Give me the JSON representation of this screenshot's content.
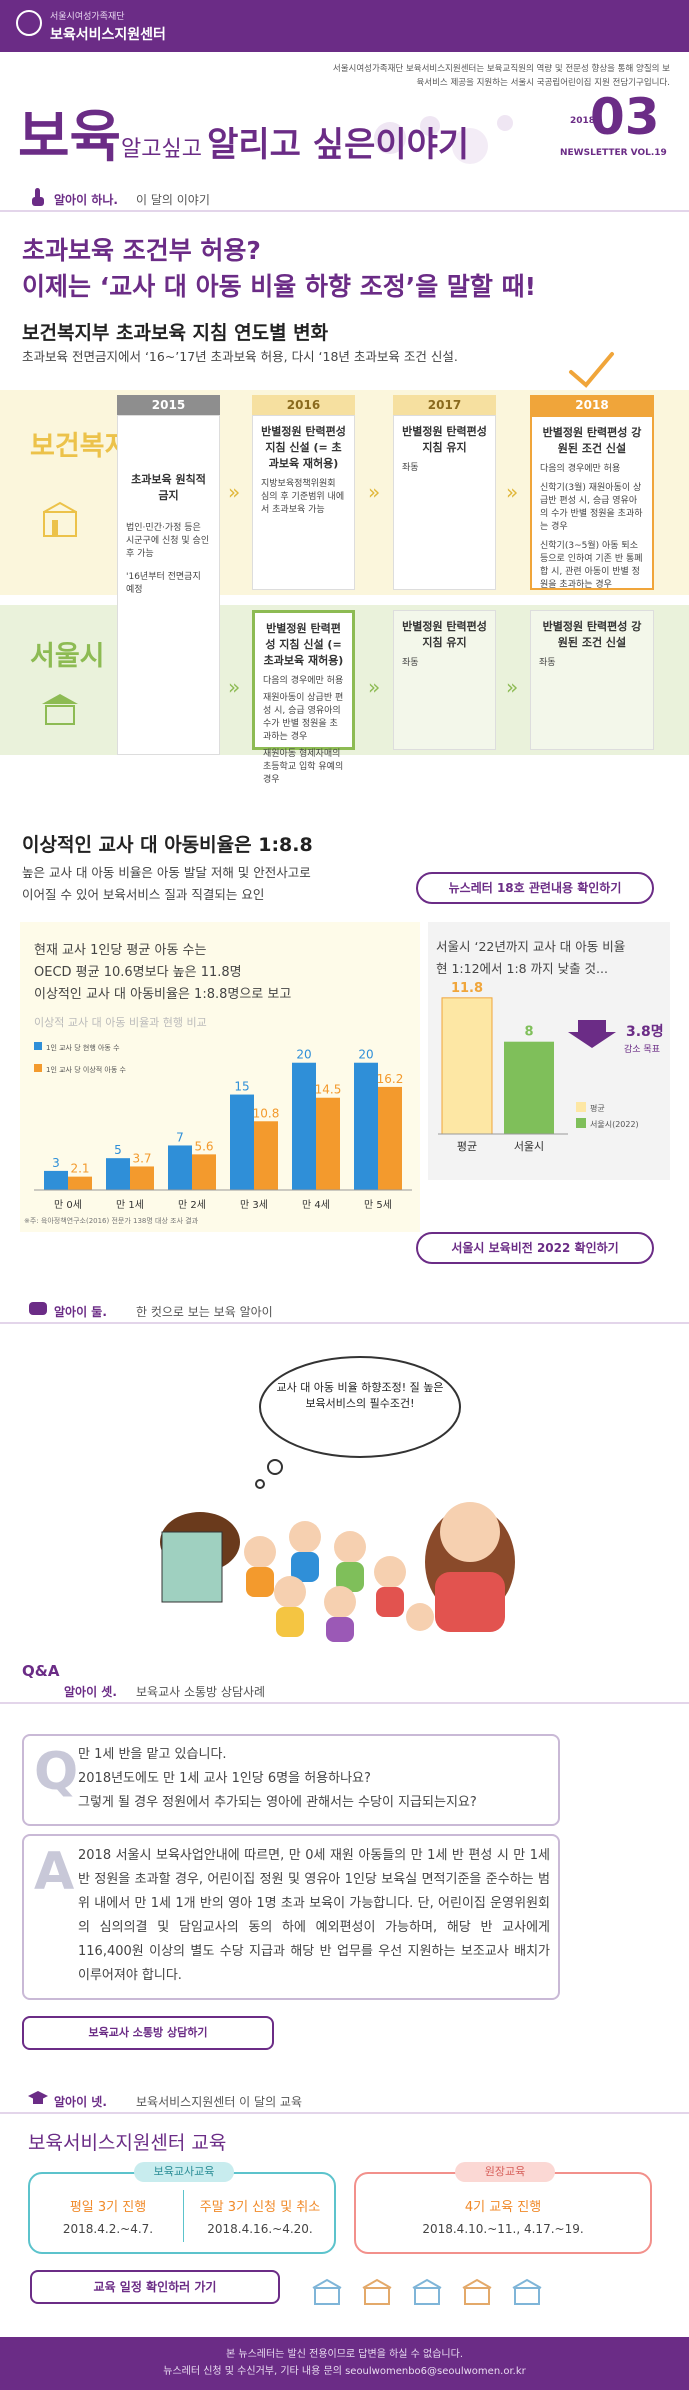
{
  "header": {
    "org_small": "서울시여성가족재단",
    "org_name": "보육서비스지원센터",
    "description": "서울시여성가족재단 보육서비스지원센터는 보육교직원의 역량 및 전문성 향상을 통해 양질의 보육서비스 제공을 지원하는 서울시 국공립어린이집 지원 전담기구입니다.",
    "title_b1": "보육",
    "title_s1": "알고싶고",
    "title_b2": "알리고 싶은",
    "title_s2": "이야기",
    "year": "2018",
    "issue": "03",
    "vol": "NEWSLETTER VOL.19"
  },
  "section1": {
    "tag": "알아이 하나.",
    "sub": "이 달의 이야기",
    "headline1": "초과보육 조건부 허용?",
    "headline2": "이제는 ‘교사 대 아동 비율 하향 조정’을 말할 때!",
    "subtitle": "보건복지부 초과보육 지침 연도별 변화",
    "lead": "초과보육 전면금지에서 ‘16~’17년 초과보육 허용, 다시 ‘18년 초과보육 조건 신설.",
    "years": [
      "2015",
      "2016",
      "2017",
      "2018"
    ],
    "side_mohw": "보건복지부",
    "side_seoul": "서울시",
    "mohw": {
      "c2015_title": "초과보육 원칙적 금지",
      "c2015_note1": "법인·민간·가정 등은 시군구에 신청 및 승인 후 가능",
      "c2015_note2": "'16년부터 전면금지 예정",
      "c2016_title": "반별정원 탄력편성 지침 신설 (= 초과보육 재허용)",
      "c2016_note": "지방보육정책위원회 심의 후 기준범위 내에서 초과보육 가능",
      "c2017_title": "반별정원 탄력편성 지침 유지",
      "c2017_note": "좌동",
      "c2018_title": "반별정원 탄력편성 강원된 조건 신설",
      "c2018_note1": "다음의 경우에만 허용",
      "c2018_note2": "신학기(3월) 재원아동이 상급반 편성 시, 승급 영유아의 수가 반별 정원을 초과하는 경우",
      "c2018_note3": "신학기(3~5월) 아동 퇴소 등으로 인하여 기존 반 통폐합 시, 관련 아동이 반별 정원을 초과하는 경우"
    },
    "seoul": {
      "c2016_title": "반별정원 탄력편성 지침 신설 (= 초과보육 재허용)",
      "c2016_note1": "다음의 경우에만 허용",
      "c2016_note2": "재원아동이 상급반 편성 시, 승급 영유아의 수가 반별 정원을 초과하는 경우",
      "c2016_note3": "재원아동 형제자매의 초등학교 입학 유예의 경우",
      "c2017_title": "반별정원 탄력편성 지침 유지",
      "c2017_note": "좌동",
      "c2018_title": "반별정원 탄력편성 강원된 조건 신설",
      "c2018_note": "좌동"
    },
    "ratio_title": "이상적인 교사 대 아동비율은 1:8.8",
    "ratio_desc1": "높은 교사 대 아동 비율은 아동 발달 저해 및 안전사고로",
    "ratio_desc2": "이어질 수 있어 보육서비스 질과 직결되는 요인",
    "btn_newsletter": "뉴스레터 18호 관련내용 확인하기",
    "box1_line1": "현재 교사 1인당 평균 아동 수는",
    "box1_line2": "OECD 평균 10.6명보다 높은 11.8명",
    "box1_line3": "이상적인 교사 대 아동비율은 1:8.8명으로 보고",
    "box2_line1": "서울시 ‘22년까지 교사 대 아동 비율",
    "box2_line2": "현 1:12에서 1:8 까지 낮출 것...",
    "btn_vision": "서울시 보육비전 2022 확인하기"
  },
  "chart_data": [
    {
      "type": "bar",
      "title": "이상적 교사 대 아동 비율과 현행 비교",
      "categories": [
        "만 0세",
        "만 1세",
        "만 2세",
        "만 3세",
        "만 4세",
        "만 5세"
      ],
      "series": [
        {
          "name": "1인 교사 당 현행 아동 수",
          "values": [
            3,
            5,
            7,
            15,
            20,
            20
          ],
          "color": "#2f8fd8"
        },
        {
          "name": "1인 교사 당 이상적 아동 수",
          "values": [
            2.1,
            3.7,
            5.6,
            10.8,
            14.5,
            16.2
          ],
          "color": "#f39a2d"
        }
      ],
      "source": "※주: 육아정책연구소(2016) 전문가 138명 대상 조사 결과",
      "ylim": [
        0,
        22
      ]
    },
    {
      "type": "bar",
      "categories": [
        "평균",
        "서울시"
      ],
      "values": [
        11.8,
        8
      ],
      "legend": [
        "평균",
        "서울시(2022)"
      ],
      "annotation": "3.8명",
      "annotation_sub": "감소 목표",
      "colors": [
        "#fde7a4",
        "#7fbf5a"
      ],
      "ylim": [
        0,
        13
      ]
    }
  ],
  "section2": {
    "tag": "알아이 둘.",
    "sub": "한 컷으로 보는 보육 알아이",
    "bubble": "교사 대 아동 비율 하향조정! 질 높은 보육서비스의 필수조건!"
  },
  "section3": {
    "qa": "Q&A",
    "tag": "알아이 셋.",
    "sub": "보육교사 소통방 상담사례",
    "q_letter": "Q",
    "q1": "만 1세 반을 맡고 있습니다.",
    "q2": "2018년도에도 만 1세 교사 1인당 6명을 허용하나요?",
    "q3": "그렇게 될 경우 정원에서 추가되는 영아에 관해서는 수당이 지급되는지요?",
    "a_letter": "A",
    "answer": "2018 서울시 보육사업안내에 따르면, 만 0세 재원 아동들의 만 1세 반 편성 시 만 1세반 정원을 초과할 경우, 어린이집 정원 및 영유아 1인당 보육실 면적기준을 준수하는 범위 내에서 만 1세 1개 반의 영아 1명 초과 보육이 가능합니다. 단, 어린이집 운영위원회의 심의의결 및 담임교사의 동의 하에 예외편성이 가능하며, 해당 반 교사에게 116,400원 이상의 별도 수당 지급과 해당 반 업무를 우선 지원하는 보조교사 배치가 이루어져야 합니다.",
    "btn": "보육교사 소통방 상담하기"
  },
  "section4": {
    "tag": "알아이 넷.",
    "sub": "보육서비스지원센터 이 달의 교육",
    "title": "보육서비스지원센터 교육",
    "box1_label": "보육교사교육",
    "box1_a_title": "평일 3기 진행",
    "box1_a_date": "2018.4.2.~4.7.",
    "box1_b_title": "주말 3기 신청 및 취소",
    "box1_b_date": "2018.4.16.~4.20.",
    "box2_label": "원장교육",
    "box2_title": "4기 교육 진행",
    "box2_date": "2018.4.10.~11., 4.17.~19.",
    "btn": "교육 일정 확인하러 가기"
  },
  "footer": {
    "line1": "본 뉴스레터는 발신 전용이므로 답변을 하실 수 없습니다.",
    "line2": "뉴스레터 신청 및 수신거부, 기타 내용 문의 seoulwomenbo6@seoulwomen.or.kr"
  }
}
